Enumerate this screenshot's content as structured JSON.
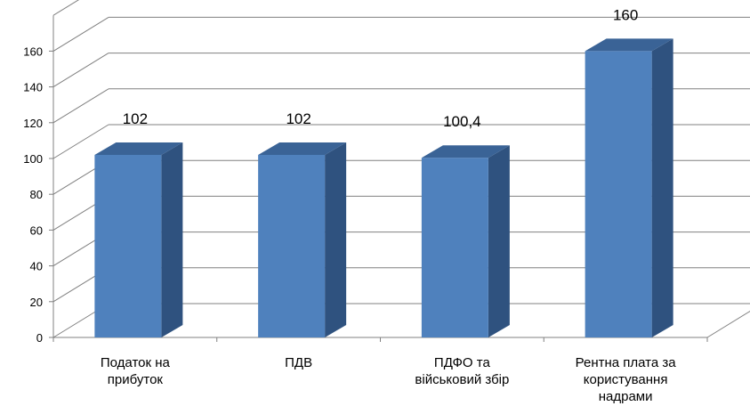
{
  "chart_data": {
    "type": "bar",
    "categories": [
      [
        "Податок на",
        "прибуток"
      ],
      [
        "ПДВ"
      ],
      [
        "ПДФО та",
        "військовий збір"
      ],
      [
        "Рентна плата за",
        "користування",
        "надрами"
      ]
    ],
    "values": [
      102,
      102,
      100.4,
      160
    ],
    "data_labels": [
      "102",
      "102",
      "100,4",
      "160"
    ],
    "yticks": [
      "0",
      "20",
      "40",
      "60",
      "80",
      "100",
      "120",
      "140",
      "160"
    ],
    "ylim": [
      0,
      180
    ],
    "grid": true,
    "three_d": true,
    "colors": {
      "front": "#4f81bd",
      "side": "#2f527f",
      "top": "#3a6396",
      "grid": "#808080"
    }
  }
}
